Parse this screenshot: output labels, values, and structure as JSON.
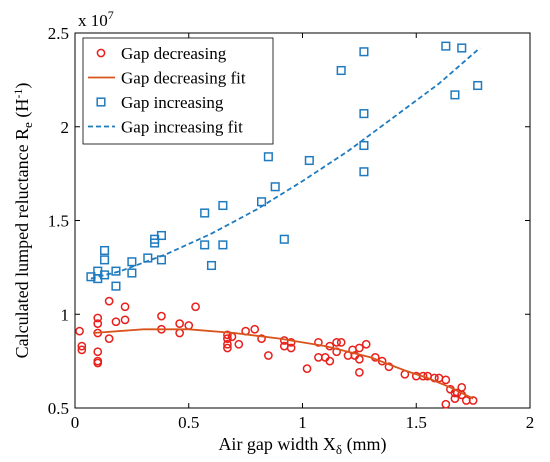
{
  "chart_data": {
    "type": "scatter",
    "xlabel": "Air gap width X",
    "xlabel_sub": "δ",
    "xlabel_unit": " (mm)",
    "ylabel": "Calculated lumped reluctance R",
    "ylabel_sub": "e",
    "ylabel_unit": " (H",
    "ylabel_sup": "-1",
    "ylabel_close": ")",
    "multiplier_base": "x 10",
    "multiplier_exp": "7",
    "xlim": [
      0,
      2
    ],
    "ylim": [
      0.5,
      2.5
    ],
    "x_ticks": [
      {
        "value": 0,
        "label": "0"
      },
      {
        "value": 0.5,
        "label": "0.5"
      },
      {
        "value": 1,
        "label": "1"
      },
      {
        "value": 1.5,
        "label": "1.5"
      },
      {
        "value": 2,
        "label": "2"
      }
    ],
    "y_ticks": [
      {
        "value": 0.5,
        "label": "0.5"
      },
      {
        "value": 1,
        "label": "1"
      },
      {
        "value": 1.5,
        "label": "1.5"
      },
      {
        "value": 2,
        "label": "2"
      },
      {
        "value": 2.5,
        "label": "2.5"
      }
    ],
    "grid": false,
    "legend_position": "top-left",
    "series": [
      {
        "name": "Gap decreasing",
        "kind": "scatter",
        "marker": "circle",
        "color": "#e8201c",
        "points": [
          [
            0.02,
            0.91
          ],
          [
            0.03,
            0.81
          ],
          [
            0.03,
            0.83
          ],
          [
            0.1,
            0.74
          ],
          [
            0.1,
            0.75
          ],
          [
            0.1,
            0.8
          ],
          [
            0.1,
            0.9
          ],
          [
            0.1,
            0.95
          ],
          [
            0.1,
            0.98
          ],
          [
            0.15,
            0.87
          ],
          [
            0.15,
            1.07
          ],
          [
            0.18,
            0.96
          ],
          [
            0.22,
            1.04
          ],
          [
            0.22,
            0.97
          ],
          [
            0.38,
            0.99
          ],
          [
            0.38,
            0.92
          ],
          [
            0.46,
            0.9
          ],
          [
            0.46,
            0.95
          ],
          [
            0.5,
            0.94
          ],
          [
            0.53,
            1.04
          ],
          [
            0.67,
            0.87
          ],
          [
            0.67,
            0.84
          ],
          [
            0.67,
            0.82
          ],
          [
            0.67,
            0.89
          ],
          [
            0.69,
            0.88
          ],
          [
            0.72,
            0.84
          ],
          [
            0.75,
            0.91
          ],
          [
            0.79,
            0.92
          ],
          [
            0.82,
            0.87
          ],
          [
            0.85,
            0.78
          ],
          [
            0.92,
            0.86
          ],
          [
            0.92,
            0.83
          ],
          [
            0.95,
            0.85
          ],
          [
            0.95,
            0.82
          ],
          [
            1.02,
            0.71
          ],
          [
            1.07,
            0.77
          ],
          [
            1.07,
            0.85
          ],
          [
            1.1,
            0.77
          ],
          [
            1.12,
            0.75
          ],
          [
            1.12,
            0.83
          ],
          [
            1.15,
            0.8
          ],
          [
            1.15,
            0.85
          ],
          [
            1.17,
            0.85
          ],
          [
            1.2,
            0.78
          ],
          [
            1.22,
            0.81
          ],
          [
            1.23,
            0.78
          ],
          [
            1.25,
            0.82
          ],
          [
            1.25,
            0.76
          ],
          [
            1.25,
            0.69
          ],
          [
            1.28,
            0.84
          ],
          [
            1.32,
            0.77
          ],
          [
            1.35,
            0.75
          ],
          [
            1.38,
            0.72
          ],
          [
            1.45,
            0.68
          ],
          [
            1.5,
            0.67
          ],
          [
            1.53,
            0.67
          ],
          [
            1.55,
            0.67
          ],
          [
            1.58,
            0.66
          ],
          [
            1.6,
            0.66
          ],
          [
            1.63,
            0.52
          ],
          [
            1.63,
            0.65
          ],
          [
            1.65,
            0.6
          ],
          [
            1.67,
            0.55
          ],
          [
            1.68,
            0.58
          ],
          [
            1.7,
            0.57
          ],
          [
            1.72,
            0.54
          ],
          [
            1.75,
            0.54
          ],
          [
            1.67,
            0.58
          ],
          [
            1.7,
            0.61
          ]
        ]
      },
      {
        "name": "Gap decreasing fit",
        "kind": "line",
        "style": "solid",
        "color": "#d9541c",
        "points": [
          [
            0.08,
            0.9
          ],
          [
            0.3,
            0.92
          ],
          [
            0.5,
            0.92
          ],
          [
            0.7,
            0.9
          ],
          [
            0.9,
            0.87
          ],
          [
            1.1,
            0.83
          ],
          [
            1.3,
            0.77
          ],
          [
            1.45,
            0.7
          ],
          [
            1.55,
            0.66
          ],
          [
            1.65,
            0.61
          ],
          [
            1.75,
            0.55
          ]
        ]
      },
      {
        "name": "Gap increasing",
        "kind": "scatter",
        "marker": "square",
        "color": "#1f7bbf",
        "points": [
          [
            0.07,
            1.2
          ],
          [
            0.1,
            1.19
          ],
          [
            0.1,
            1.23
          ],
          [
            0.13,
            1.21
          ],
          [
            0.13,
            1.29
          ],
          [
            0.13,
            1.34
          ],
          [
            0.18,
            1.15
          ],
          [
            0.18,
            1.23
          ],
          [
            0.25,
            1.22
          ],
          [
            0.25,
            1.28
          ],
          [
            0.32,
            1.3
          ],
          [
            0.35,
            1.4
          ],
          [
            0.35,
            1.38
          ],
          [
            0.38,
            1.29
          ],
          [
            0.38,
            1.42
          ],
          [
            0.57,
            1.37
          ],
          [
            0.57,
            1.54
          ],
          [
            0.6,
            1.26
          ],
          [
            0.65,
            1.37
          ],
          [
            0.65,
            1.58
          ],
          [
            0.82,
            1.6
          ],
          [
            0.85,
            1.84
          ],
          [
            0.88,
            1.68
          ],
          [
            0.92,
            1.4
          ],
          [
            1.03,
            1.82
          ],
          [
            1.17,
            2.3
          ],
          [
            1.27,
            2.4
          ],
          [
            1.27,
            2.07
          ],
          [
            1.27,
            1.9
          ],
          [
            1.27,
            1.76
          ],
          [
            1.63,
            2.43
          ],
          [
            1.67,
            2.17
          ],
          [
            1.7,
            2.42
          ],
          [
            1.77,
            2.22
          ]
        ]
      },
      {
        "name": "Gap increasing fit",
        "kind": "line",
        "style": "dashed",
        "color": "#1f7bbf",
        "points": [
          [
            0.07,
            1.19
          ],
          [
            0.2,
            1.23
          ],
          [
            0.4,
            1.32
          ],
          [
            0.6,
            1.43
          ],
          [
            0.8,
            1.56
          ],
          [
            1.0,
            1.71
          ],
          [
            1.2,
            1.87
          ],
          [
            1.4,
            2.05
          ],
          [
            1.6,
            2.23
          ],
          [
            1.78,
            2.42
          ]
        ]
      }
    ]
  }
}
